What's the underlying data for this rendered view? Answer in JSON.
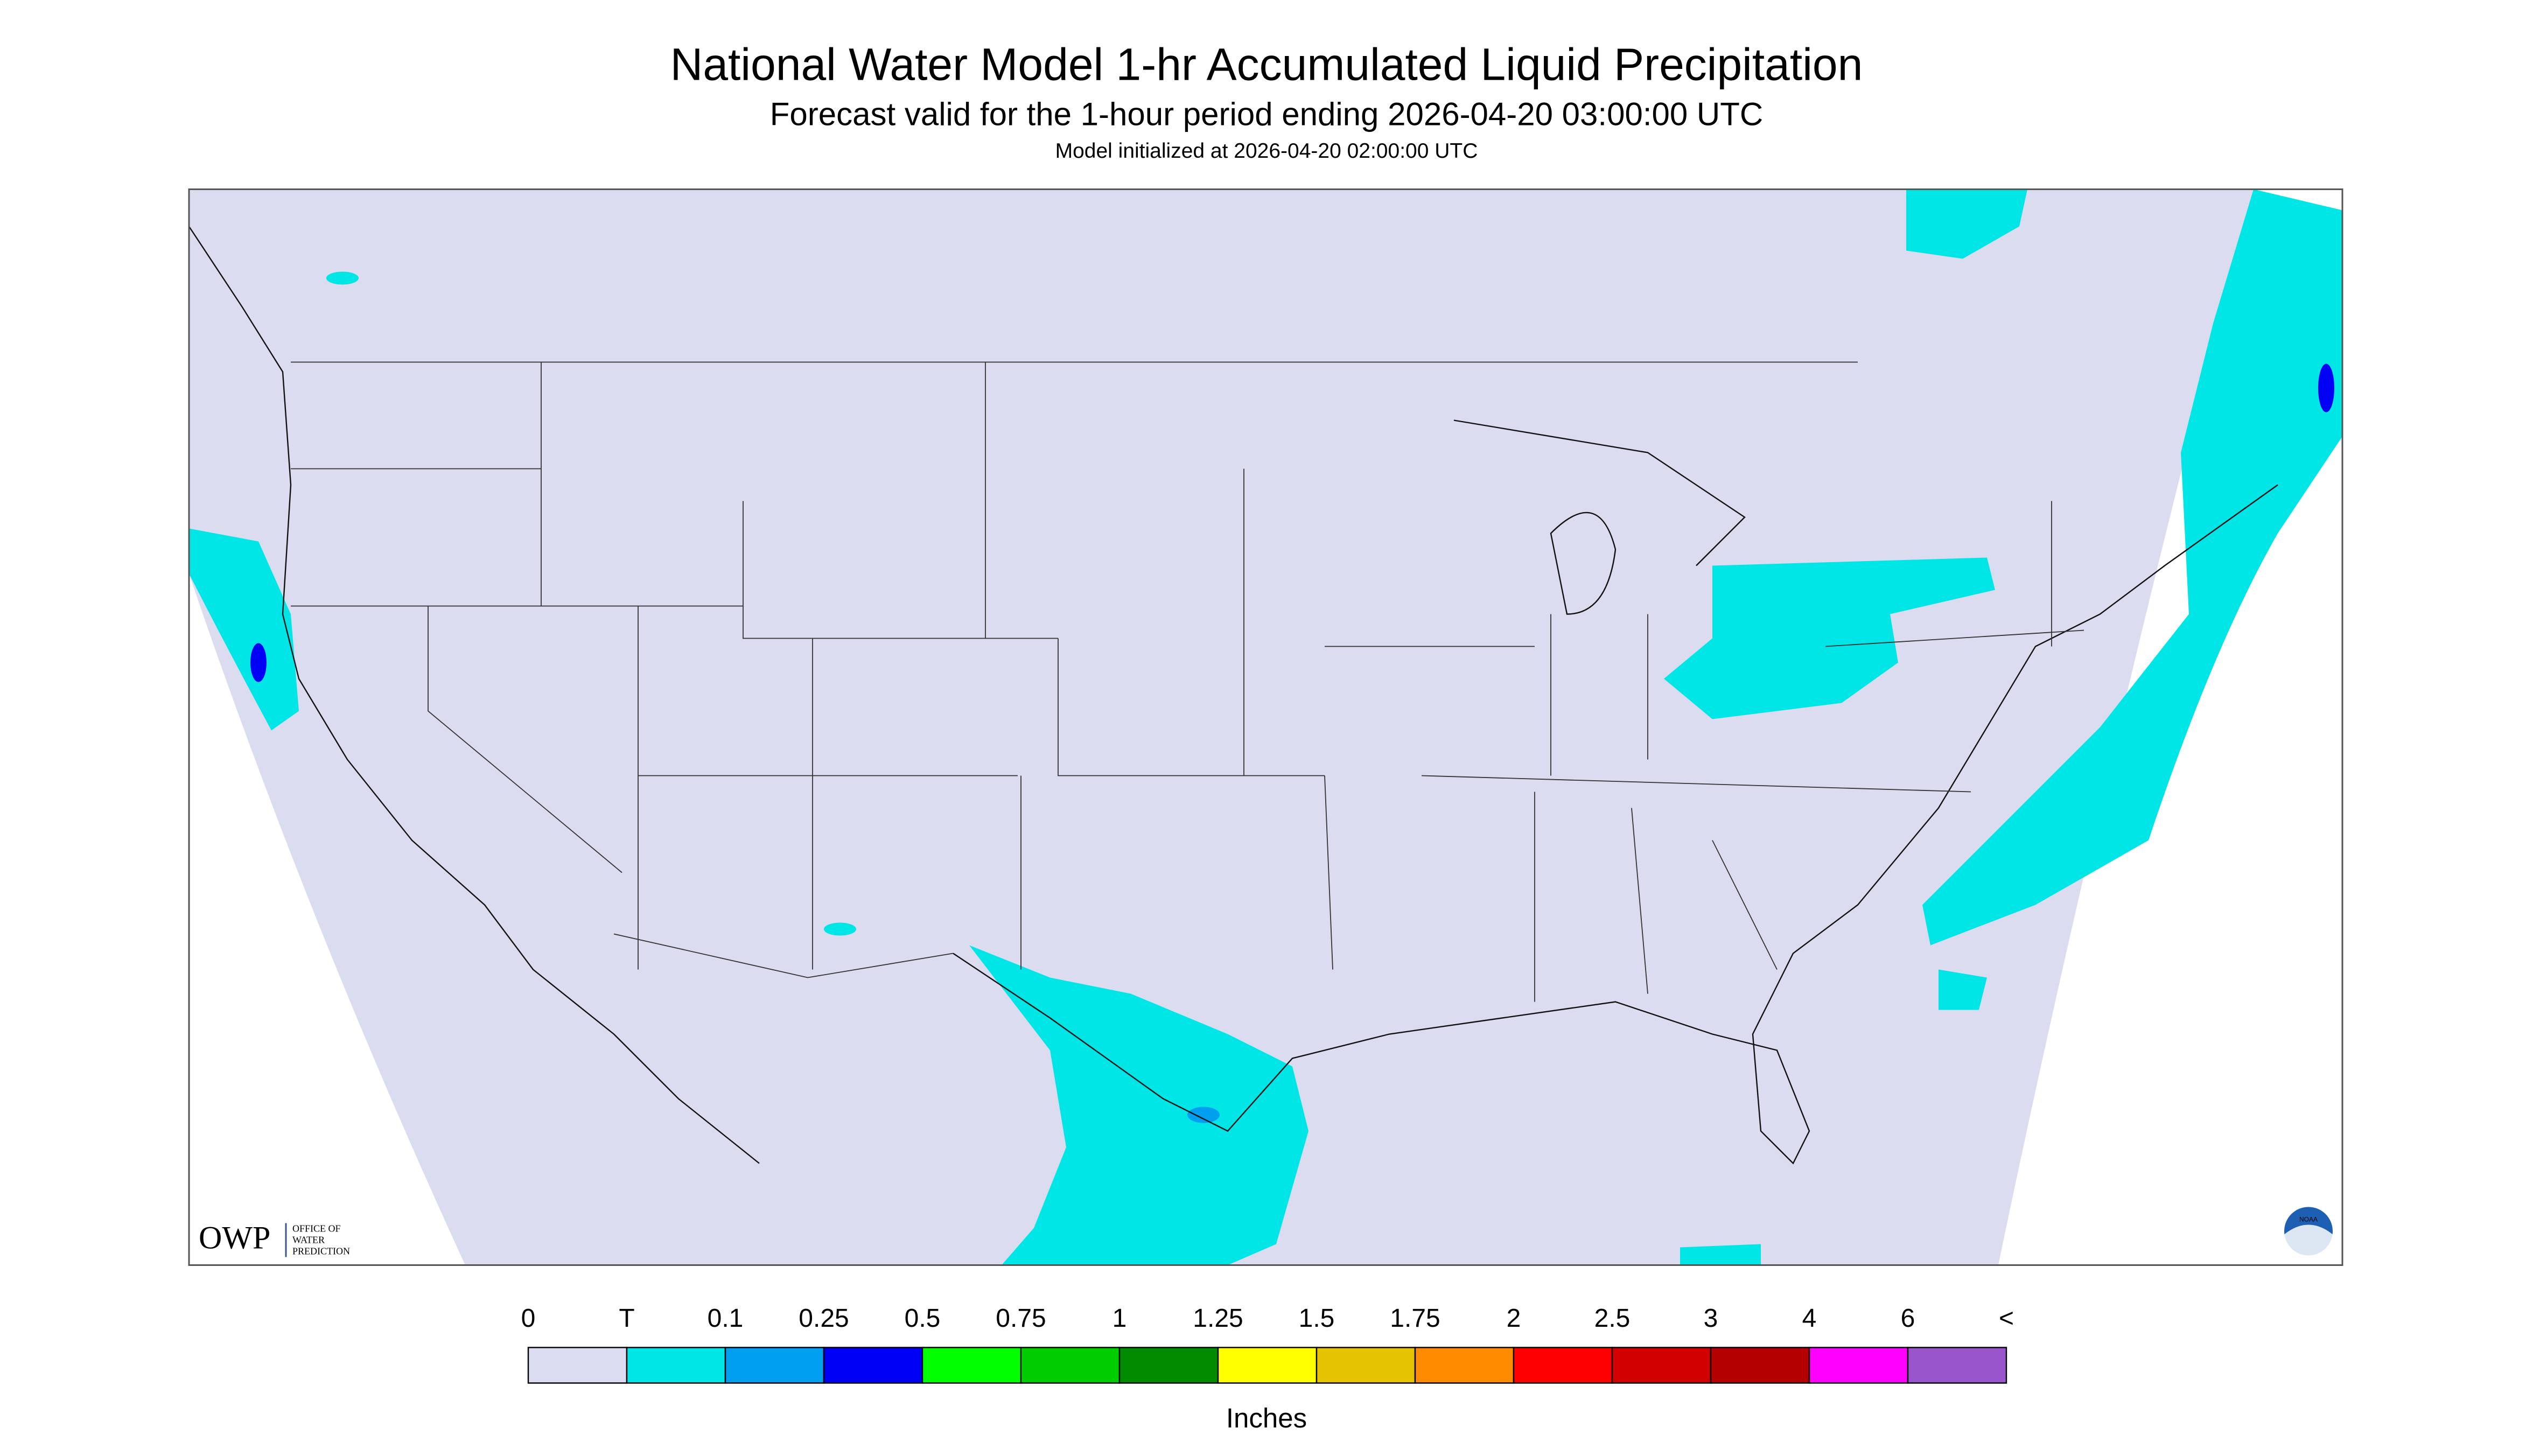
{
  "header": {
    "title": "National Water Model 1-hr Accumulated Liquid Precipitation",
    "subtitle": "Forecast valid for the 1-hour period ending 2026-04-20 03:00:00 UTC",
    "initialized": "Model initialized at 2026-04-20 02:00:00 UTC"
  },
  "logos": {
    "owp": "OWP",
    "owp_name": [
      "OFFICE OF",
      "WATER",
      "PREDICTION"
    ],
    "noaa": "NOAA"
  },
  "legend": {
    "labels": [
      "0",
      "T",
      "0.1",
      "0.25",
      "0.5",
      "0.75",
      "1",
      "1.25",
      "1.5",
      "1.75",
      "2",
      "2.5",
      "3",
      "4",
      "6",
      "<"
    ],
    "colors": [
      "#dcdcf0",
      "#00e6e6",
      "#009ff0",
      "#0000f5",
      "#00ff00",
      "#00cd00",
      "#008b00",
      "#ffff00",
      "#e6c300",
      "#ff8c00",
      "#ff0000",
      "#d20000",
      "#b40000",
      "#ff00ff",
      "#9955cc"
    ],
    "units": "Inches"
  }
}
